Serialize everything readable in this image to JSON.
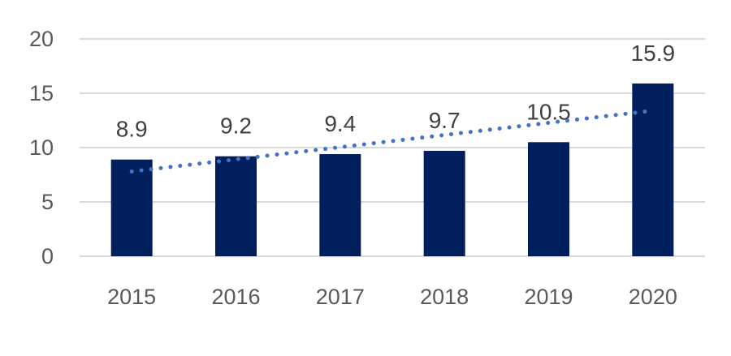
{
  "chart_data": {
    "type": "bar",
    "title": "",
    "xlabel": "",
    "ylabel": "",
    "categories": [
      "2015",
      "2016",
      "2017",
      "2018",
      "2019",
      "2020"
    ],
    "values": [
      8.9,
      9.2,
      9.4,
      9.7,
      10.5,
      15.9
    ],
    "data_labels": [
      "8.9",
      "9.2",
      "9.4",
      "9.7",
      "10.5",
      "15.9"
    ],
    "ylim": [
      0,
      20
    ],
    "yticks": [
      0,
      5,
      10,
      15,
      20
    ],
    "grid": true,
    "trendline": {
      "type": "linear",
      "style": "dotted",
      "color": "#4472C4"
    },
    "colors": {
      "bar": "#001F5C",
      "grid": "#D9D9D9",
      "trendline": "#4472C4"
    },
    "legend": "none"
  }
}
